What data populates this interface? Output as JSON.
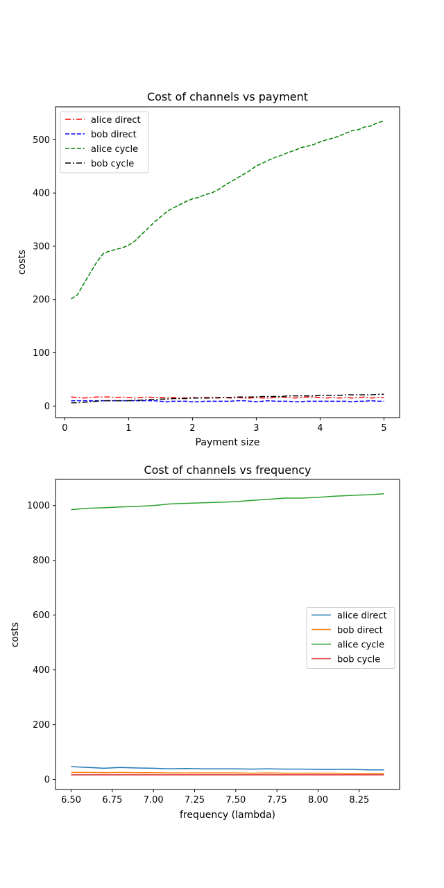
{
  "chart_data": [
    {
      "type": "line",
      "title": "Cost of channels vs payment",
      "xlabel": "Payment size",
      "ylabel": "costs",
      "xlim": [
        -0.145,
        5.245
      ],
      "ylim": [
        -21.8,
        561.8
      ],
      "xticks": [
        0,
        1,
        2,
        3,
        4,
        5
      ],
      "xtick_labels": [
        "0",
        "1",
        "2",
        "3",
        "4",
        "5"
      ],
      "yticks": [
        0,
        100,
        200,
        300,
        400,
        500
      ],
      "ytick_labels": [
        "0",
        "100",
        "200",
        "300",
        "400",
        "500"
      ],
      "legend_position": "upper-left",
      "x": [
        0.1,
        0.2,
        0.3,
        0.4,
        0.5,
        0.6,
        0.7,
        0.8,
        0.9,
        1.0,
        1.1,
        1.2,
        1.3,
        1.4,
        1.5,
        1.6,
        1.7,
        1.8,
        1.9,
        2.0,
        2.1,
        2.2,
        2.3,
        2.4,
        2.5,
        2.6,
        2.7,
        2.8,
        2.9,
        3.0,
        3.1,
        3.2,
        3.3,
        3.4,
        3.5,
        3.6,
        3.7,
        3.8,
        3.9,
        4.0,
        4.1,
        4.2,
        4.3,
        4.4,
        4.5,
        4.6,
        4.7,
        4.8,
        4.9,
        5.0
      ],
      "series": [
        {
          "name": "alice direct",
          "color": "#ff0000",
          "dash": "dashdot",
          "values": [
            17,
            16,
            15,
            16,
            17,
            17,
            17,
            16,
            17,
            16,
            15,
            16,
            17,
            16,
            16,
            15,
            16,
            15,
            15,
            16,
            15,
            16,
            16,
            15,
            16,
            15,
            16,
            15,
            15,
            16,
            15,
            15,
            16,
            17,
            16,
            15,
            16,
            17,
            17,
            16,
            15,
            16,
            15,
            16,
            15,
            16,
            17,
            15,
            16,
            16
          ]
        },
        {
          "name": "bob direct",
          "color": "#0000ff",
          "dash": "dashed",
          "values": [
            10,
            10,
            10,
            10,
            10,
            10,
            10,
            10,
            10,
            10,
            10,
            10,
            10,
            10,
            9,
            8,
            9,
            9,
            9,
            8,
            8,
            9,
            9,
            9,
            9,
            9,
            10,
            10,
            9,
            8,
            9,
            10,
            9,
            9,
            9,
            8,
            8,
            9,
            9,
            9,
            9,
            9,
            9,
            9,
            8,
            9,
            9,
            10,
            9,
            9
          ]
        },
        {
          "name": "alice cycle",
          "color": "#008000",
          "dash": "dashed",
          "values": [
            201,
            209,
            230,
            250,
            270,
            286,
            291,
            294,
            297,
            302,
            310,
            322,
            333,
            345,
            355,
            365,
            372,
            378,
            384,
            389,
            392,
            397,
            400,
            406,
            414,
            421,
            428,
            435,
            442,
            451,
            456,
            462,
            467,
            471,
            476,
            480,
            485,
            488,
            491,
            496,
            500,
            503,
            507,
            512,
            517,
            519,
            524,
            526,
            532,
            535
          ]
        },
        {
          "name": "bob cycle",
          "color": "#000000",
          "dash": "dashdot",
          "values": [
            6,
            6,
            7,
            8,
            9,
            10,
            10,
            10,
            10,
            10,
            11,
            11,
            12,
            12,
            13,
            13,
            14,
            14,
            14,
            15,
            15,
            15,
            15,
            16,
            16,
            16,
            17,
            17,
            17,
            17,
            18,
            18,
            18,
            18,
            19,
            19,
            19,
            19,
            19,
            20,
            20,
            20,
            20,
            21,
            21,
            21,
            21,
            21,
            22,
            22
          ]
        }
      ]
    },
    {
      "type": "line",
      "title": "Cost of channels vs frequency",
      "xlabel": "frequency (lambda)",
      "ylabel": "costs",
      "xlim": [
        6.405,
        8.495
      ],
      "ylim": [
        -36.5,
        1095.5
      ],
      "xticks": [
        6.5,
        6.75,
        7.0,
        7.25,
        7.5,
        7.75,
        8.0,
        8.25
      ],
      "xtick_labels": [
        "6.50",
        "6.75",
        "7.00",
        "7.25",
        "7.50",
        "7.75",
        "8.00",
        "8.25"
      ],
      "yticks": [
        0,
        200,
        400,
        600,
        800,
        1000
      ],
      "ytick_labels": [
        "0",
        "200",
        "400",
        "600",
        "800",
        "1000"
      ],
      "legend_position": "center-right",
      "x": [
        6.5,
        6.6,
        6.7,
        6.8,
        6.9,
        7.0,
        7.1,
        7.2,
        7.3,
        7.4,
        7.5,
        7.6,
        7.7,
        7.8,
        7.9,
        8.0,
        8.1,
        8.2,
        8.3,
        8.4
      ],
      "series": [
        {
          "name": "alice direct",
          "color": "#1f77b4",
          "dash": "solid",
          "values": [
            47,
            44,
            41,
            44,
            42,
            41,
            39,
            40,
            39,
            39,
            39,
            38,
            39,
            38,
            38,
            37,
            37,
            37,
            35,
            35
          ]
        },
        {
          "name": "bob direct",
          "color": "#ff7f0e",
          "dash": "solid",
          "values": [
            26,
            26,
            25,
            26,
            25,
            25,
            24,
            24,
            24,
            24,
            24,
            23,
            24,
            23,
            23,
            23,
            23,
            22,
            22,
            22
          ]
        },
        {
          "name": "alice cycle",
          "color": "#2ca02c",
          "dash": "solid",
          "values": [
            985,
            990,
            992,
            995,
            997,
            1000,
            1006,
            1008,
            1010,
            1012,
            1014,
            1019,
            1023,
            1027,
            1027,
            1030,
            1034,
            1037,
            1039,
            1043
          ]
        },
        {
          "name": "bob cycle",
          "color": "#d62728",
          "dash": "solid",
          "values": [
            17,
            17,
            17,
            17,
            17,
            17,
            17,
            17,
            17,
            17,
            17,
            17,
            17,
            17,
            17,
            17,
            17,
            17,
            17,
            17
          ]
        }
      ]
    }
  ]
}
